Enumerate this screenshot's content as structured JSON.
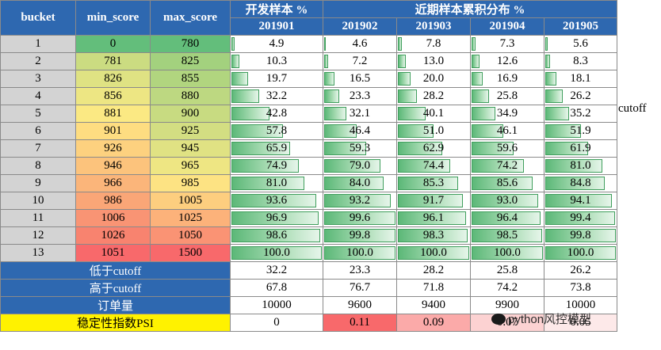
{
  "headers": {
    "bucket": "bucket",
    "min_score": "min_score",
    "max_score": "max_score",
    "dev_group": "开发样本 %",
    "recent_group": "近期样本累积分布 %",
    "periods": [
      "201901",
      "201902",
      "201903",
      "201904",
      "201905"
    ]
  },
  "rows": [
    {
      "bucket": "1",
      "min": "0",
      "max": "780",
      "vals": [
        "4.9",
        "4.6",
        "7.8",
        "7.3",
        "5.6"
      ],
      "min_color": "#63be7b",
      "max_color": "#63be7b"
    },
    {
      "bucket": "2",
      "min": "781",
      "max": "825",
      "vals": [
        "10.3",
        "7.2",
        "13.0",
        "12.6",
        "8.3"
      ],
      "min_color": "#cbdc81",
      "max_color": "#a3d17e"
    },
    {
      "bucket": "3",
      "min": "826",
      "max": "855",
      "vals": [
        "19.7",
        "16.5",
        "20.0",
        "16.9",
        "18.1"
      ],
      "min_color": "#dfe283",
      "max_color": "#b1d57f"
    },
    {
      "bucket": "4",
      "min": "856",
      "max": "880",
      "vals": [
        "32.2",
        "23.3",
        "28.2",
        "25.8",
        "26.2"
      ],
      "min_color": "#ede683",
      "max_color": "#bdd881"
    },
    {
      "bucket": "5",
      "min": "881",
      "max": "900",
      "vals": [
        "42.8",
        "32.1",
        "40.1",
        "34.9",
        "35.2"
      ],
      "min_color": "#fbe983",
      "max_color": "#c8db81"
    },
    {
      "bucket": "6",
      "min": "901",
      "max": "925",
      "vals": [
        "57.8",
        "46.4",
        "51.0",
        "46.1",
        "51.9"
      ],
      "min_color": "#fedd81",
      "max_color": "#d3de82"
    },
    {
      "bucket": "7",
      "min": "926",
      "max": "945",
      "vals": [
        "65.9",
        "59.3",
        "62.9",
        "59.6",
        "61.9"
      ],
      "min_color": "#fdd17f",
      "max_color": "#e0e283"
    },
    {
      "bucket": "8",
      "min": "946",
      "max": "965",
      "vals": [
        "74.9",
        "79.0",
        "74.4",
        "74.2",
        "81.0"
      ],
      "min_color": "#fcc37c",
      "max_color": "#eee683"
    },
    {
      "bucket": "9",
      "min": "966",
      "max": "985",
      "vals": [
        "81.0",
        "84.0",
        "85.3",
        "85.6",
        "84.8"
      ],
      "min_color": "#fbb57a",
      "max_color": "#fde383"
    },
    {
      "bucket": "10",
      "min": "986",
      "max": "1005",
      "vals": [
        "93.6",
        "93.2",
        "91.7",
        "93.0",
        "94.1"
      ],
      "min_color": "#faa677",
      "max_color": "#fdce7f"
    },
    {
      "bucket": "11",
      "min": "1006",
      "max": "1025",
      "vals": [
        "96.9",
        "99.6",
        "96.1",
        "96.4",
        "99.4"
      ],
      "min_color": "#f99474",
      "max_color": "#fcb27a"
    },
    {
      "bucket": "12",
      "min": "1026",
      "max": "1050",
      "vals": [
        "98.6",
        "99.8",
        "98.3",
        "98.5",
        "99.8"
      ],
      "min_color": "#f8836f",
      "max_color": "#fa9374"
    },
    {
      "bucket": "13",
      "min": "1051",
      "max": "1500",
      "vals": [
        "100.0",
        "100.0",
        "100.0",
        "100.0",
        "100.0"
      ],
      "min_color": "#f8696b",
      "max_color": "#f8696b"
    }
  ],
  "summary": [
    {
      "label": "低于cutoff",
      "vals": [
        "32.2",
        "23.3",
        "28.2",
        "25.8",
        "26.2"
      ]
    },
    {
      "label": "高于cutoff",
      "vals": [
        "67.8",
        "76.7",
        "71.8",
        "74.2",
        "73.8"
      ]
    },
    {
      "label": "订单量",
      "vals": [
        "10000",
        "9600",
        "9400",
        "9900",
        "10000"
      ]
    }
  ],
  "psi": {
    "label": "稳定性指数PSI",
    "vals": [
      "0",
      "0.11",
      "0.09",
      "0.07",
      "0.05"
    ],
    "colors": [
      "#ffffff",
      "#f8696b",
      "#fbaaa9",
      "#fcd2d2",
      "#fde9e9"
    ]
  },
  "cutoff_label": "cutoff",
  "watermark": "python风控模型",
  "icon": "wechat-icon"
}
